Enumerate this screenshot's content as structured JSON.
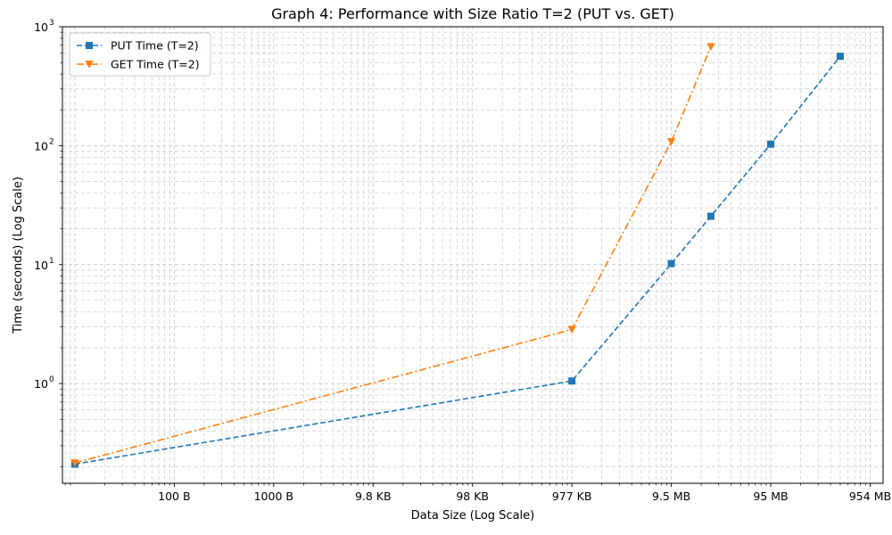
{
  "chart_data": {
    "type": "line",
    "title": "Graph 4: Performance with Size Ratio T=2 (PUT vs. GET)",
    "xlabel": "Data Size (Log Scale)",
    "ylabel": "Time (seconds) (Log Scale)",
    "x_scale": "log",
    "y_scale": "log",
    "xlim": [
      7.5,
      1350000000
    ],
    "ylim": [
      0.145,
      1000
    ],
    "grid": true,
    "legend_position": "top-left",
    "x_ticks": [
      {
        "value": 100,
        "label": "100 B"
      },
      {
        "value": 1000,
        "label": "1000 B"
      },
      {
        "value": 10000,
        "label": "9.8 KB"
      },
      {
        "value": 100000,
        "label": "98 KB"
      },
      {
        "value": 1000000,
        "label": "977 KB"
      },
      {
        "value": 10000000,
        "label": "9.5 MB"
      },
      {
        "value": 100000000,
        "label": "95 MB"
      },
      {
        "value": 1000000000,
        "label": "954 MB"
      }
    ],
    "y_ticks": [
      {
        "value": 1,
        "base": "10",
        "exp": "0"
      },
      {
        "value": 10,
        "base": "10",
        "exp": "1"
      },
      {
        "value": 100,
        "base": "10",
        "exp": "2"
      },
      {
        "value": 1000,
        "base": "10",
        "exp": "3"
      }
    ],
    "series": [
      {
        "name": "PUT Time (T=2)",
        "color": "#1f77b4",
        "marker": "square",
        "dash": "dashed",
        "points": [
          {
            "x": 10,
            "y": 0.21
          },
          {
            "x": 1000000,
            "y": 1.05
          },
          {
            "x": 10000000,
            "y": 10.2
          },
          {
            "x": 25000000,
            "y": 25.5
          },
          {
            "x": 100000000,
            "y": 103
          },
          {
            "x": 500000000,
            "y": 565
          }
        ]
      },
      {
        "name": "GET Time (T=2)",
        "color": "#ff7f0e",
        "marker": "triangle-down",
        "dash": "dashdot",
        "points": [
          {
            "x": 10,
            "y": 0.215
          },
          {
            "x": 1000000,
            "y": 2.85
          },
          {
            "x": 10000000,
            "y": 108
          },
          {
            "x": 25000000,
            "y": 680
          }
        ]
      }
    ]
  }
}
